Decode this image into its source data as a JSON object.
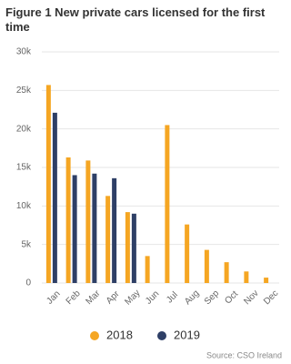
{
  "chart_data": {
    "type": "bar",
    "title": "Figure 1 New private cars licensed for the first time",
    "categories": [
      "Jan",
      "Feb",
      "Mar",
      "Apr",
      "May",
      "Jun",
      "Jul",
      "Aug",
      "Sep",
      "Oct",
      "Nov",
      "Dec"
    ],
    "series": [
      {
        "name": "2018",
        "color": "#f5a623",
        "values": [
          25700,
          16300,
          15900,
          11300,
          9200,
          3500,
          20500,
          7600,
          4300,
          2700,
          1500,
          700
        ]
      },
      {
        "name": "2019",
        "color": "#2e3f66",
        "values": [
          22100,
          14000,
          14200,
          13600,
          9000,
          null,
          null,
          null,
          null,
          null,
          null,
          null
        ]
      }
    ],
    "ylim": [
      0,
      30000
    ],
    "yticks": [
      0,
      {
        "value": 5000,
        "label": "5k"
      },
      {
        "value": 10000,
        "label": "10k"
      },
      {
        "value": 15000,
        "label": "15k"
      },
      {
        "value": 20000,
        "label": "20k"
      },
      {
        "value": 25000,
        "label": "25k"
      },
      {
        "value": 30000,
        "label": "30k"
      }
    ],
    "grid": true,
    "legend": "bottom",
    "source": "Source: CSO Ireland"
  }
}
